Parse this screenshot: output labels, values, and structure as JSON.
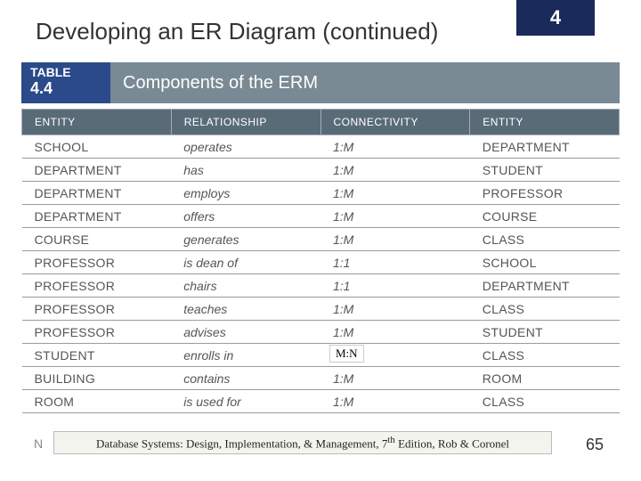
{
  "chapter_number": "4",
  "title": "Developing an ER Diagram (continued)",
  "table_label_prefix": "TABLE",
  "table_label_num": "4.4",
  "table_caption": "Components of the ERM",
  "columns": [
    "ENTITY",
    "RELATIONSHIP",
    "CONNECTIVITY",
    "ENTITY"
  ],
  "rows": [
    [
      "SCHOOL",
      "operates",
      "1:M",
      "DEPARTMENT"
    ],
    [
      "DEPARTMENT",
      "has",
      "1:M",
      "STUDENT"
    ],
    [
      "DEPARTMENT",
      "employs",
      "1:M",
      "PROFESSOR"
    ],
    [
      "DEPARTMENT",
      "offers",
      "1:M",
      "COURSE"
    ],
    [
      "COURSE",
      "generates",
      "1:M",
      "CLASS"
    ],
    [
      "PROFESSOR",
      "is dean of",
      "1:1",
      "SCHOOL"
    ],
    [
      "PROFESSOR",
      "chairs",
      "1:1",
      "DEPARTMENT"
    ],
    [
      "PROFESSOR",
      "teaches",
      "1:M",
      "CLASS"
    ],
    [
      "PROFESSOR",
      "advises",
      "1:M",
      "STUDENT"
    ],
    [
      "STUDENT",
      "enrolls in",
      "",
      "CLASS"
    ],
    [
      "BUILDING",
      "contains",
      "1:M",
      "ROOM"
    ],
    [
      "ROOM",
      "is used for",
      "1:M",
      "CLASS"
    ]
  ],
  "mn_overlay_text": "M:N",
  "mn_overlay_row_index": 9,
  "footer_text_parts": [
    "Database Systems: Design, Implementation, & Management, 7",
    "th",
    " Edition, Rob & Coronel"
  ],
  "page_number": "65",
  "truncated_last_label": "N",
  "colors": {
    "chapter_bg": "#1a2a5a",
    "tab_bg": "#2a4a8a",
    "caption_bg": "#7a8a94",
    "th_bg": "#5a6b78",
    "border": "#99a"
  }
}
